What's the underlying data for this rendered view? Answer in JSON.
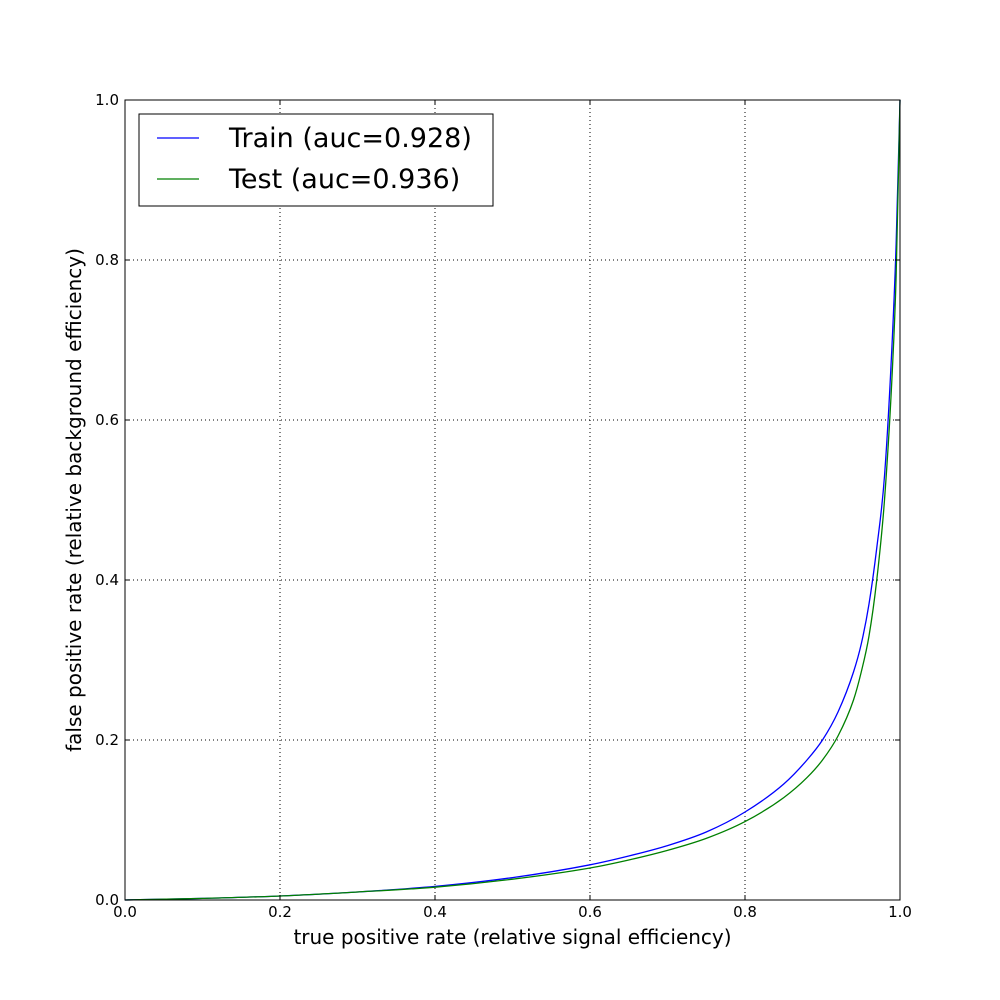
{
  "chart_data": {
    "type": "line",
    "title": "",
    "xlabel": "true positive rate (relative signal efficiency)",
    "ylabel": "false positive rate (relative background efficiency)",
    "xlim": [
      0.0,
      1.0
    ],
    "ylim": [
      0.0,
      1.0
    ],
    "grid": true,
    "legend_position": "top-left",
    "xticks": [
      "0.0",
      "0.2",
      "0.4",
      "0.6",
      "0.8",
      "1.0"
    ],
    "yticks": [
      "0.0",
      "0.2",
      "0.4",
      "0.6",
      "0.8",
      "1.0"
    ],
    "series": [
      {
        "name": "Train (auc=0.928)",
        "color": "#0000ff",
        "x": [
          0.0,
          0.1,
          0.2,
          0.3,
          0.4,
          0.5,
          0.6,
          0.65,
          0.7,
          0.75,
          0.8,
          0.85,
          0.88,
          0.9,
          0.92,
          0.94,
          0.95,
          0.96,
          0.97,
          0.98,
          0.99,
          0.995,
          1.0
        ],
        "y": [
          0.0,
          0.002,
          0.005,
          0.01,
          0.017,
          0.028,
          0.044,
          0.055,
          0.068,
          0.085,
          0.11,
          0.145,
          0.175,
          0.2,
          0.235,
          0.285,
          0.32,
          0.37,
          0.44,
          0.53,
          0.7,
          0.82,
          1.0
        ]
      },
      {
        "name": "Test (auc=0.936)",
        "color": "#008000",
        "x": [
          0.0,
          0.1,
          0.2,
          0.3,
          0.4,
          0.5,
          0.6,
          0.65,
          0.7,
          0.75,
          0.8,
          0.85,
          0.88,
          0.9,
          0.92,
          0.94,
          0.95,
          0.96,
          0.97,
          0.98,
          0.99,
          0.995,
          1.0
        ],
        "y": [
          0.0,
          0.002,
          0.005,
          0.01,
          0.016,
          0.026,
          0.04,
          0.05,
          0.062,
          0.077,
          0.098,
          0.128,
          0.153,
          0.175,
          0.205,
          0.25,
          0.285,
          0.33,
          0.4,
          0.5,
          0.66,
          0.78,
          1.0
        ]
      }
    ]
  }
}
